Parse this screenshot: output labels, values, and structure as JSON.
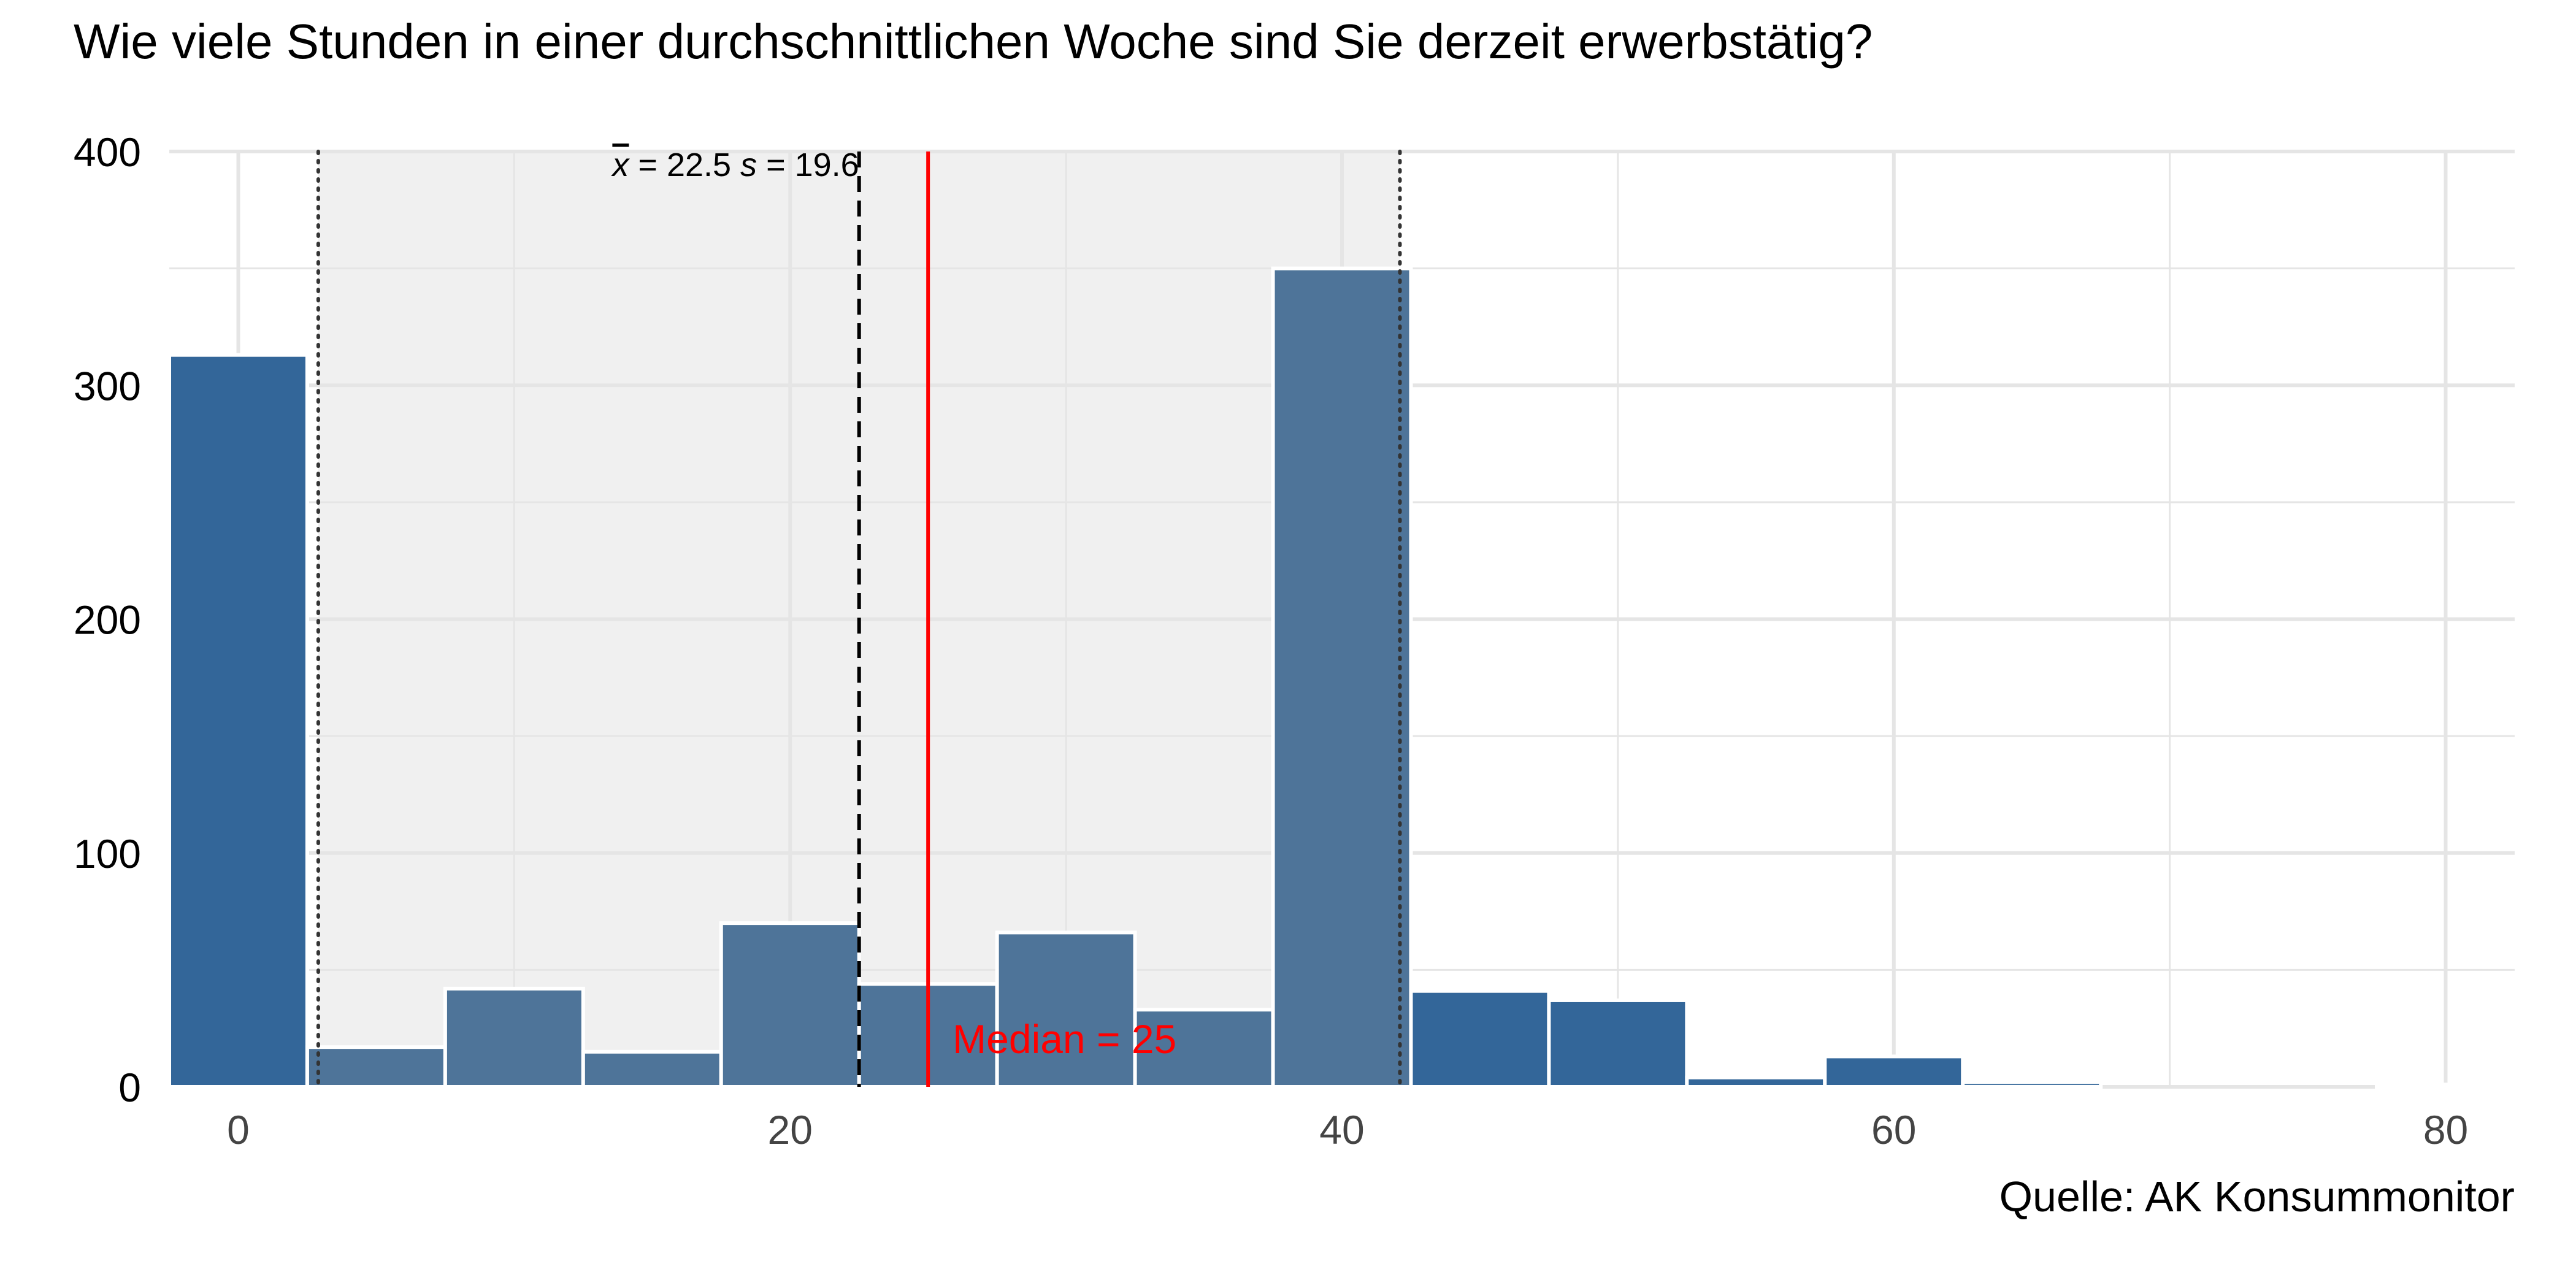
{
  "chart_data": {
    "type": "bar",
    "title": "Wie viele Stunden in einer durchschnittlichen Woche sind Sie derzeit erwerbstätig?",
    "caption": "Quelle: AK Konsummonitor",
    "xlabel": "",
    "ylabel": "",
    "xlim": [
      -2.5,
      82.5
    ],
    "ylim": [
      0,
      400
    ],
    "x_ticks": [
      0,
      20,
      40,
      60,
      80
    ],
    "y_ticks": [
      0,
      100,
      200,
      300,
      400
    ],
    "y_minor_ticks": [
      50,
      150,
      250,
      350
    ],
    "x_minor_ticks": [
      10,
      30,
      50,
      70
    ],
    "grid": true,
    "bin_width": 5,
    "bins": [
      {
        "center": 0,
        "count": 313
      },
      {
        "center": 5,
        "count": 17
      },
      {
        "center": 10,
        "count": 42
      },
      {
        "center": 15,
        "count": 15
      },
      {
        "center": 20,
        "count": 70
      },
      {
        "center": 25,
        "count": 44
      },
      {
        "center": 30,
        "count": 66
      },
      {
        "center": 35,
        "count": 33
      },
      {
        "center": 40,
        "count": 350
      },
      {
        "center": 45,
        "count": 41
      },
      {
        "center": 50,
        "count": 37
      },
      {
        "center": 55,
        "count": 4
      },
      {
        "center": 60,
        "count": 13
      },
      {
        "center": 65,
        "count": 2
      },
      {
        "center": 70,
        "count": 0
      },
      {
        "center": 75,
        "count": 0
      },
      {
        "center": 80,
        "count": 1
      }
    ],
    "mean": 22.5,
    "sd": 19.6,
    "median": 25,
    "sd_band": [
      2.9,
      42.1
    ],
    "stats_label": {
      "mean_symbol": "x",
      "mean_text": " = 22.5",
      "sd_symbol": "s",
      "sd_text": " = 19.6"
    },
    "median_label": "Median = 25",
    "colors": {
      "bar_outside": "#336699",
      "bar_inside": "#4e7499",
      "band": "#f0f0f0",
      "grid": "#e5e5e5",
      "median": "#ff0000",
      "mean_line": "#000000",
      "sd_line": "#333333",
      "text": "#000000",
      "tick_text": "#444444"
    }
  }
}
